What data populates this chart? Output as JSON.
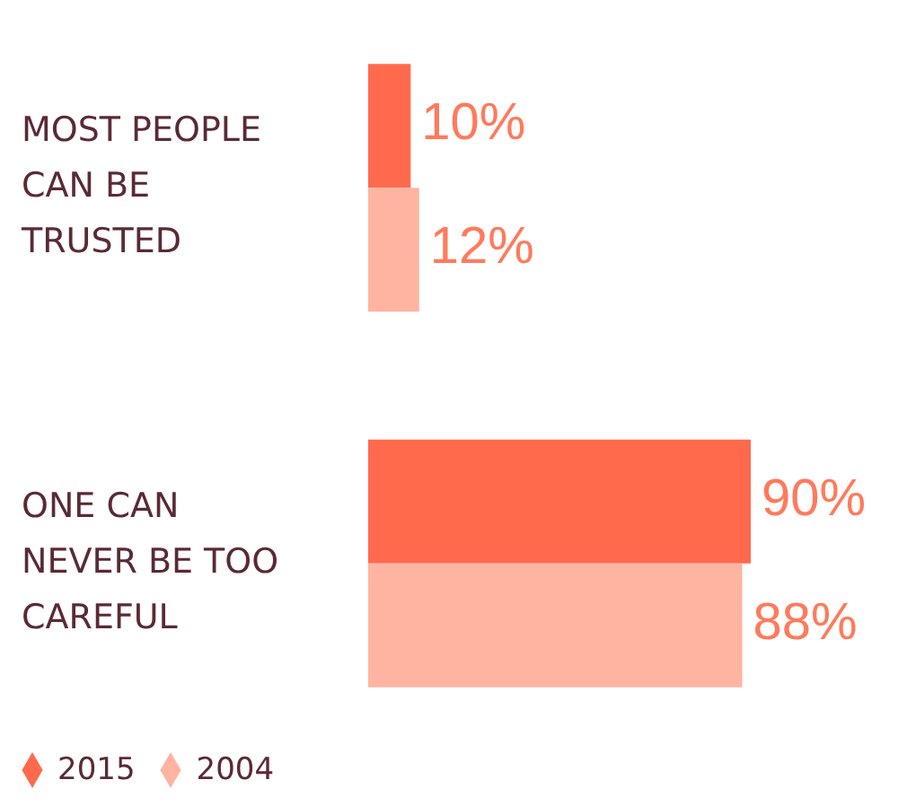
{
  "chart_data": {
    "type": "bar",
    "orientation": "horizontal",
    "categories": [
      "MOST PEOPLE CAN BE TRUSTED",
      "ONE CAN NEVER BE TOO CAREFUL"
    ],
    "series": [
      {
        "name": "2015",
        "color": "#ff6a4d",
        "values": [
          10,
          90
        ],
        "value_labels": [
          "10%",
          "90%"
        ]
      },
      {
        "name": "2004",
        "color": "#ffb4a2",
        "values": [
          12,
          88
        ],
        "value_labels": [
          "12%",
          "88%"
        ]
      }
    ],
    "tick_labels": "y",
    "legend": "bottom left",
    "marker": "diamond"
  }
}
